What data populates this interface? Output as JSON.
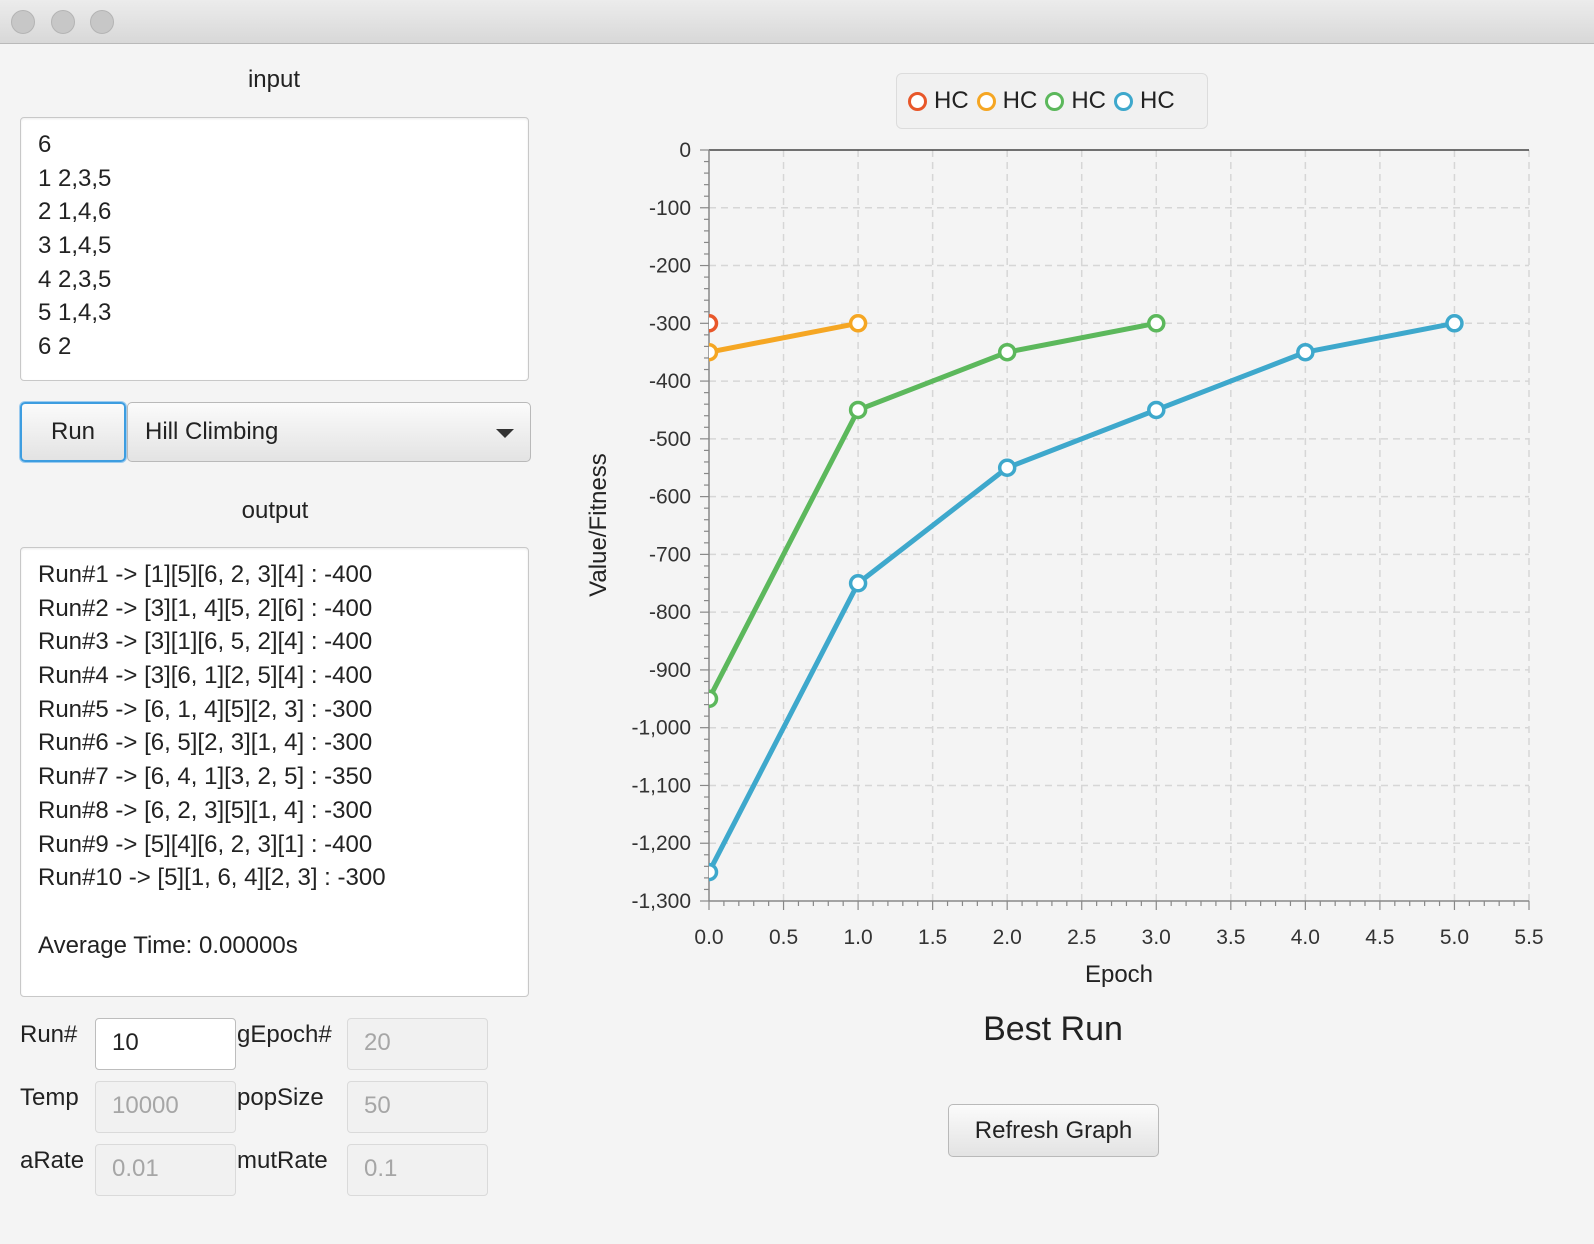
{
  "window": {
    "traffic_lights": [
      "close",
      "minimize",
      "zoom"
    ]
  },
  "input_panel": {
    "label": "input",
    "lines": [
      "6",
      "1 2,3,5",
      "2 1,4,6",
      "3 1,4,5",
      "4 2,3,5",
      "5 1,4,3",
      "6 2"
    ]
  },
  "controls": {
    "run_label": "Run",
    "algorithm_selected": "Hill Climbing"
  },
  "output_panel": {
    "label": "output",
    "lines": [
      "Run#1 -> [1][5][6, 2, 3][4] : -400",
      "Run#2 -> [3][1, 4][5, 2][6] : -400",
      "Run#3 -> [3][1][6, 5, 2][4] : -400",
      "Run#4 -> [3][6, 1][2, 5][4] : -400",
      "Run#5 -> [6, 1, 4][5][2, 3] : -300",
      "Run#6 -> [6, 5][2, 3][1, 4] : -300",
      "Run#7 -> [6, 4, 1][3, 2, 5] : -350",
      "Run#8 -> [6, 2, 3][5][1, 4] : -300",
      "Run#9 -> [5][4][6, 2, 3][1] : -400",
      "Run#10 -> [5][1, 6, 4][2, 3] : -300",
      "",
      "Average Time: 0.00000s"
    ]
  },
  "params": {
    "run_label": "Run#",
    "run_value": "10",
    "gepoch_label": "gEpoch#",
    "gepoch_value": "20",
    "temp_label": "Temp",
    "temp_value": "10000",
    "popsize_label": "popSize",
    "popsize_value": "50",
    "arate_label": "aRate",
    "arate_value": "0.01",
    "mutrate_label": "mutRate",
    "mutrate_value": "0.1"
  },
  "chart_data": {
    "type": "line",
    "title": "Best Run",
    "xlabel": "Epoch",
    "ylabel": "Value/Fitness",
    "xlim": [
      0,
      5.5
    ],
    "ylim": [
      -1300,
      0
    ],
    "xticks": [
      "0.0",
      "0.5",
      "1.0",
      "1.5",
      "2.0",
      "2.5",
      "3.0",
      "3.5",
      "4.0",
      "4.5",
      "5.0",
      "5.5"
    ],
    "yticks": [
      "0",
      "-100",
      "-200",
      "-300",
      "-400",
      "-500",
      "-600",
      "-700",
      "-800",
      "-900",
      "-1,000",
      "-1,100",
      "-1,200",
      "-1,300"
    ],
    "grid": true,
    "legend_position": "top",
    "series": [
      {
        "name": "HC",
        "color": "#e8572a",
        "x": [
          0
        ],
        "y": [
          -300
        ]
      },
      {
        "name": "HC",
        "color": "#f5a623",
        "x": [
          0,
          1
        ],
        "y": [
          -350,
          -300
        ]
      },
      {
        "name": "HC",
        "color": "#5cb85c",
        "x": [
          0,
          1,
          2,
          3
        ],
        "y": [
          -950,
          -450,
          -350,
          -300
        ]
      },
      {
        "name": "HC",
        "color": "#3ea8cc",
        "x": [
          0,
          1,
          2,
          3,
          4,
          5
        ],
        "y": [
          -1250,
          -750,
          -550,
          -450,
          -350,
          -300
        ]
      }
    ]
  },
  "refresh_label": "Refresh Graph"
}
